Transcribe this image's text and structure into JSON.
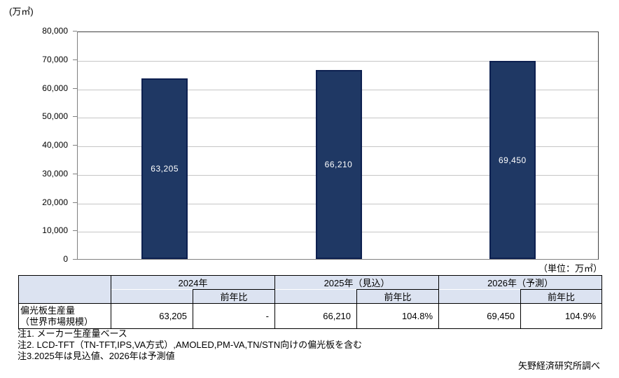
{
  "page": {
    "unit_top": "(万㎡)",
    "unit_right": "（単位：万㎡）",
    "notes": [
      "注1. メーカー生産量ベース",
      "注2. LCD-TFT（TN-TFT,IPS,VA方式）,AMOLED,PM-VA,TN/STN向けの偏光板を含む",
      "注3.2025年は見込値、2026年は予測値"
    ],
    "source": "矢野経済研究所調べ"
  },
  "chart_data": {
    "type": "bar",
    "title": "",
    "categories": [
      "2024年",
      "2025年（見込）",
      "2026年（予測）"
    ],
    "values": [
      63205,
      66210,
      69450
    ],
    "value_labels": [
      "63,205",
      "66,210",
      "69,450"
    ],
    "yoy": [
      "-",
      "104.8%",
      "104.9%"
    ],
    "unit": "万㎡",
    "xlabel": "",
    "ylabel": "万㎡",
    "ylim": [
      0,
      80000
    ],
    "ytick_step": 10000,
    "ytick_labels": [
      "0",
      "10,000",
      "20,000",
      "30,000",
      "40,000",
      "50,000",
      "60,000",
      "70,000",
      "80,000"
    ],
    "grid": true,
    "legend_position": "none",
    "colors": {
      "bar_fill": "#1F3864",
      "bar_border": "#0D2050",
      "bar_label_text": "#FFFFFF",
      "gridline": "#C6C6C6",
      "axis": "#808080",
      "table_header_bg": "#DCE3F1",
      "table_border": "#000000"
    }
  },
  "table": {
    "row_label_lines": [
      "偏光板生産量",
      "（世界市場規模）"
    ],
    "yoy_header": "前年比",
    "groups": [
      {
        "year": "2024年",
        "value": "63,205",
        "yoy": "-"
      },
      {
        "year": "2025年（見込）",
        "value": "66,210",
        "yoy": "104.8%"
      },
      {
        "year": "2026年（予測）",
        "value": "69,450",
        "yoy": "104.9%"
      }
    ]
  }
}
